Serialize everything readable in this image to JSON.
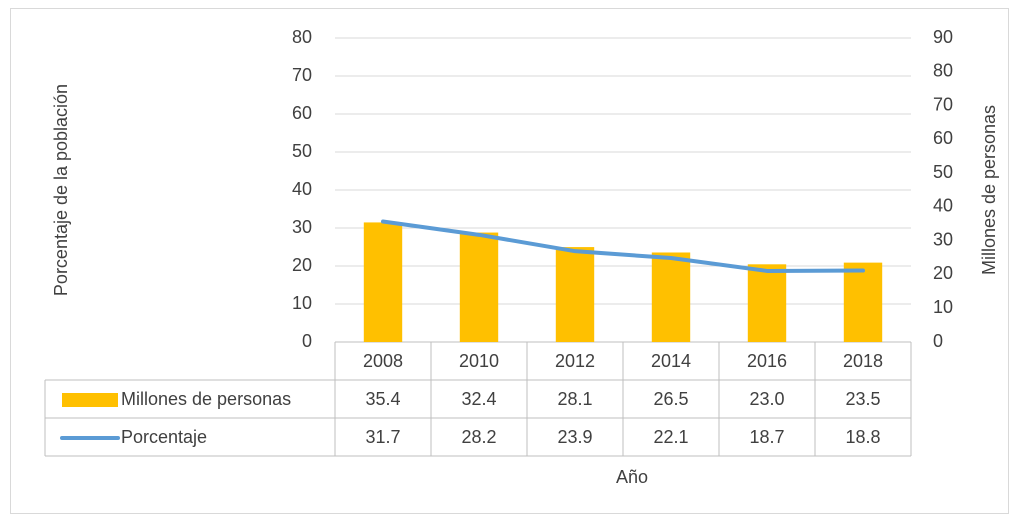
{
  "chart_data": {
    "type": "bar-line",
    "categories": [
      "2008",
      "2010",
      "2012",
      "2014",
      "2016",
      "2018"
    ],
    "series": [
      {
        "name": "Millones de personas",
        "type": "bar",
        "axis": "y2",
        "color": "#ffc000",
        "values": [
          35.4,
          32.4,
          28.1,
          26.5,
          23.0,
          23.5
        ],
        "value_labels": [
          "35.4",
          "32.4",
          "28.1",
          "26.5",
          "23.0",
          "23.5"
        ]
      },
      {
        "name": "Porcentaje",
        "type": "line",
        "color": "#5b9bd5",
        "values": [
          31.7,
          28.2,
          23.9,
          22.1,
          18.7,
          18.8
        ],
        "value_labels": [
          "31.7",
          "28.2",
          "23.9",
          "22.1",
          "18.7",
          "18.8"
        ]
      }
    ],
    "x_label": "Año",
    "y_label": "Porcentaje de la población",
    "y2_label": "Millones de personas",
    "ylim": [
      0,
      80
    ],
    "yticks": [
      0,
      10,
      20,
      30,
      40,
      50,
      60,
      70,
      80
    ],
    "y2lim": [
      0,
      90
    ],
    "y2ticks": [
      0,
      10,
      20,
      30,
      40,
      50,
      60,
      70,
      80,
      90
    ],
    "grid": true
  }
}
